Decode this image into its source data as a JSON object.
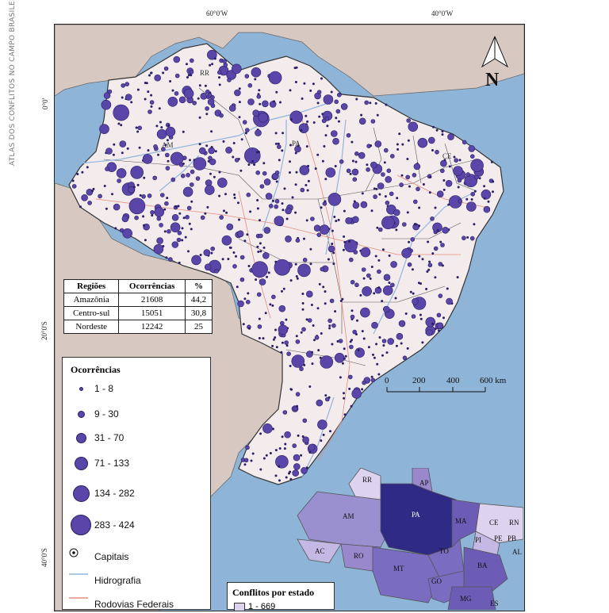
{
  "side_text": "ATLAS DOS CONFLITOS NO CAMPO BRASILEIRO",
  "coordinates": {
    "lon_60": "60°0'W",
    "lon_40": "40°0'W",
    "lat_0": "0°0'",
    "lat_20": "20°0'S",
    "lat_40": "40°0'S"
  },
  "north_label": "N",
  "scale": {
    "labels": [
      "0",
      "200",
      "400",
      "600 km"
    ]
  },
  "state_labels": [
    "RR",
    "AM",
    "PA",
    "CE"
  ],
  "region_table": {
    "headers": [
      "Regiões",
      "Ocorrências",
      "%"
    ],
    "rows": [
      [
        "Amazônia",
        "21608",
        "44,2"
      ],
      [
        "Centro-sul",
        "15051",
        "30,8"
      ],
      [
        "Nordeste",
        "12242",
        "25"
      ]
    ]
  },
  "legend": {
    "title": "Ocorrências",
    "classes": [
      "1 - 8",
      "9 - 30",
      "31 - 70",
      "71 - 133",
      "134 - 282",
      "283 - 424"
    ],
    "capitals": "Capitais",
    "hydrography": "Hidrografia",
    "federal_roads": "Rodovias Federais"
  },
  "inset": {
    "title": "Conflitos por estado",
    "first_class": "1 - 669",
    "labels": [
      "RR",
      "AP",
      "AM",
      "PA",
      "MA",
      "CE",
      "RN",
      "PB",
      "PE",
      "AL",
      "PI",
      "AC",
      "RO",
      "TO",
      "MT",
      "BA",
      "GO",
      "MG",
      "ES"
    ]
  },
  "colors": {
    "ocean": "#8eb4d8",
    "brazil_land": "#f4ecec",
    "neighbor_land": "#d8c8c2",
    "dot_fill": "#5a46a8",
    "dot_stroke": "#2a1f66",
    "river": "#8fb6de",
    "road": "#e88a7c"
  }
}
